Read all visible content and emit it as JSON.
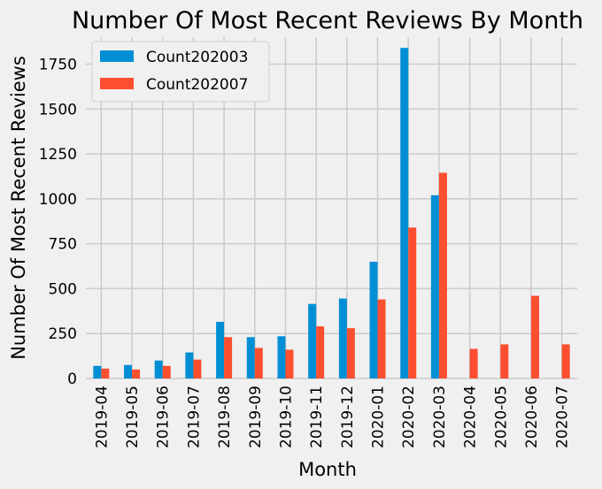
{
  "chart_data": {
    "type": "bar",
    "title": "Number Of Most Recent Reviews By Month",
    "xlabel": "Month",
    "ylabel": "Number Of Most Recent Reviews",
    "ylim": [
      0,
      1900
    ],
    "yticks": [
      0,
      250,
      500,
      750,
      1000,
      1250,
      1500,
      1750
    ],
    "grid": true,
    "legend_position": "top-left",
    "categories": [
      "2019-04",
      "2019-05",
      "2019-06",
      "2019-07",
      "2019-08",
      "2019-09",
      "2019-10",
      "2019-11",
      "2019-12",
      "2020-01",
      "2020-02",
      "2020-03",
      "2020-04",
      "2020-05",
      "2020-06",
      "2020-07"
    ],
    "series": [
      {
        "name": "Count202003",
        "color": "#008fd5",
        "values": [
          70,
          75,
          100,
          145,
          315,
          230,
          235,
          415,
          445,
          650,
          1840,
          1020,
          0,
          0,
          0,
          0
        ]
      },
      {
        "name": "Count202007",
        "color": "#fc4f30",
        "values": [
          55,
          50,
          70,
          105,
          230,
          170,
          160,
          290,
          280,
          440,
          840,
          1145,
          165,
          190,
          460,
          190
        ]
      }
    ]
  }
}
